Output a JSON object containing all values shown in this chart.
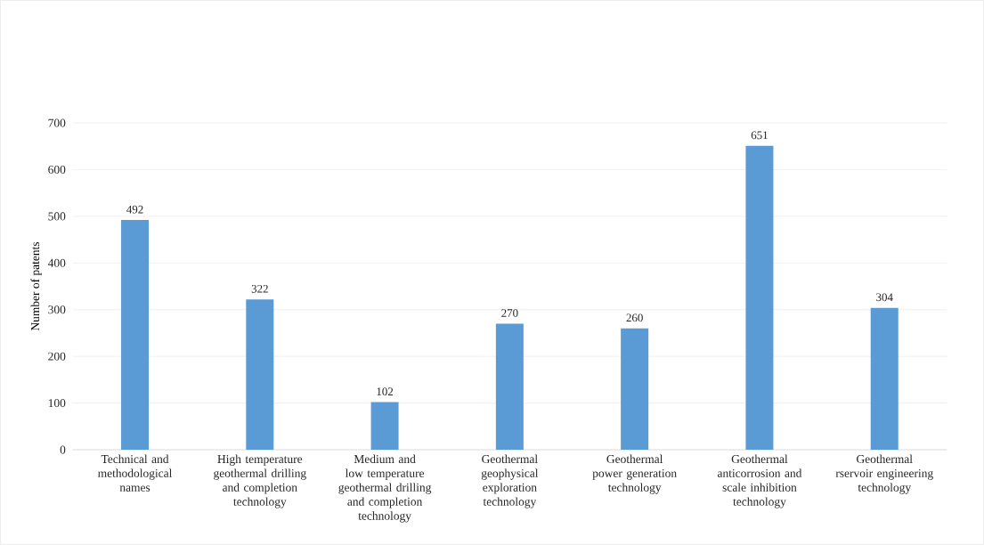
{
  "chart_data": {
    "type": "bar",
    "ylabel": "Number of patents",
    "categories": [
      "Technical and methodological names",
      "High temperature geothermal drilling and completion technology",
      "Medium and low temperature geothermal drilling and completion technology",
      "Geothermal geophysical exploration technology",
      "Geothermal power generation technology",
      "Geothermal anticorrosion and scale inhibition technology",
      "Geothermal rservoir engineering technology"
    ],
    "values": [
      492,
      322,
      102,
      270,
      260,
      651,
      304
    ],
    "color": "#5b9bd5",
    "ylim": [
      0,
      700
    ],
    "yticks": [
      0,
      100,
      200,
      300,
      400,
      500,
      600,
      700
    ],
    "grid": "y",
    "data_labels": true
  }
}
